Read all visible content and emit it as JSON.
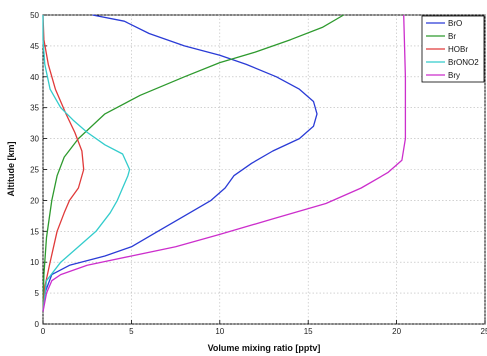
{
  "chart_data": {
    "type": "line",
    "title": "",
    "xlabel": "Volume mixing ratio [pptv]",
    "ylabel": "Altitude [km]",
    "xlim": [
      0,
      25
    ],
    "ylim": [
      0,
      50
    ],
    "xticks": [
      "0",
      "5",
      "10",
      "15",
      "20",
      "25"
    ],
    "yticks": [
      "0",
      "5",
      "10",
      "15",
      "20",
      "25",
      "30",
      "35",
      "40",
      "45",
      "50"
    ],
    "grid": true,
    "legend_position": "top-right",
    "series": [
      {
        "name": "BrO",
        "color": "#2a3bd6",
        "points": [
          [
            0,
            2
          ],
          [
            0.1,
            5
          ],
          [
            0.5,
            8
          ],
          [
            1.5,
            9.5
          ],
          [
            3.5,
            11
          ],
          [
            5,
            12.5
          ],
          [
            6.5,
            15
          ],
          [
            8,
            17.5
          ],
          [
            9.5,
            20
          ],
          [
            10.3,
            22
          ],
          [
            10.8,
            24
          ],
          [
            11.8,
            26
          ],
          [
            13,
            28
          ],
          [
            14.5,
            30
          ],
          [
            15.3,
            32
          ],
          [
            15.5,
            34
          ],
          [
            15.3,
            36
          ],
          [
            14.5,
            38
          ],
          [
            13.2,
            40
          ],
          [
            11.5,
            42
          ],
          [
            10,
            43.5
          ],
          [
            8,
            45
          ],
          [
            6,
            47
          ],
          [
            4.6,
            49
          ],
          [
            2.8,
            50
          ]
        ]
      },
      {
        "name": "Br",
        "color": "#2e9a2e",
        "points": [
          [
            0,
            2
          ],
          [
            0.05,
            8
          ],
          [
            0.2,
            14
          ],
          [
            0.5,
            20
          ],
          [
            0.8,
            24
          ],
          [
            1.2,
            27
          ],
          [
            2,
            30
          ],
          [
            3.5,
            34
          ],
          [
            5.5,
            37
          ],
          [
            8,
            40
          ],
          [
            10,
            42.3
          ],
          [
            12,
            44
          ],
          [
            14,
            46
          ],
          [
            15.8,
            48
          ],
          [
            17,
            50
          ]
        ]
      },
      {
        "name": "HOBr",
        "color": "#e03a3a",
        "points": [
          [
            0,
            2
          ],
          [
            0.1,
            6
          ],
          [
            0.4,
            10
          ],
          [
            0.8,
            15
          ],
          [
            1.2,
            18
          ],
          [
            1.5,
            20
          ],
          [
            2,
            22
          ],
          [
            2.3,
            25
          ],
          [
            2.2,
            28
          ],
          [
            1.8,
            31
          ],
          [
            1.3,
            34
          ],
          [
            0.7,
            38
          ],
          [
            0.3,
            42
          ],
          [
            0.05,
            46
          ],
          [
            0,
            50
          ]
        ]
      },
      {
        "name": "BrONO2",
        "color": "#33cccc",
        "points": [
          [
            0,
            2
          ],
          [
            0.2,
            7
          ],
          [
            1,
            10
          ],
          [
            2,
            12.5
          ],
          [
            3,
            15
          ],
          [
            3.8,
            18
          ],
          [
            4.2,
            20
          ],
          [
            4.5,
            22
          ],
          [
            4.8,
            24
          ],
          [
            4.9,
            25
          ],
          [
            4.5,
            27.5
          ],
          [
            3.5,
            29
          ],
          [
            2.5,
            31
          ],
          [
            1.7,
            33
          ],
          [
            1,
            35
          ],
          [
            0.4,
            38
          ],
          [
            0.1,
            42
          ],
          [
            0,
            46
          ],
          [
            0,
            50
          ]
        ]
      },
      {
        "name": "Bry",
        "color": "#cc2ecc",
        "points": [
          [
            0,
            2
          ],
          [
            0.2,
            5
          ],
          [
            0.5,
            7
          ],
          [
            1,
            8
          ],
          [
            2.5,
            9.5
          ],
          [
            5,
            11
          ],
          [
            7.5,
            12.5
          ],
          [
            10,
            14.5
          ],
          [
            13,
            17
          ],
          [
            16,
            19.5
          ],
          [
            18,
            22
          ],
          [
            19.5,
            24.5
          ],
          [
            20.3,
            26.5
          ],
          [
            20.5,
            30
          ],
          [
            20.5,
            40
          ],
          [
            20.4,
            50
          ]
        ]
      }
    ]
  }
}
